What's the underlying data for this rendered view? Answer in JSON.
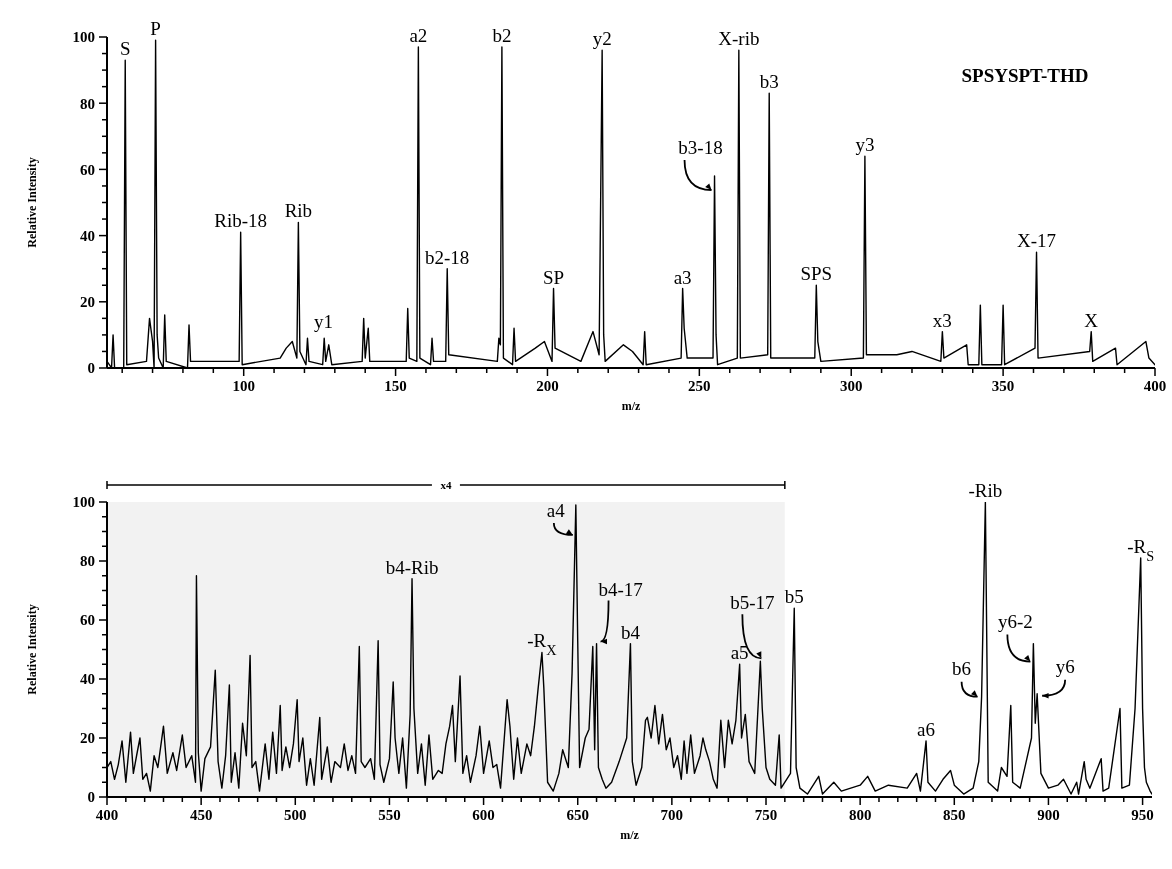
{
  "chart_data": [
    {
      "type": "line",
      "xlabel": "m/z",
      "ylabel": "Relative Intensity",
      "color": "#000000",
      "xlim": [
        55,
        400
      ],
      "ylim": [
        0,
        100
      ],
      "xticks": [
        {
          "value": 60,
          "label": null
        },
        {
          "value": 70,
          "label": null
        },
        {
          "value": 80,
          "label": null
        },
        {
          "value": 90,
          "label": null
        },
        100,
        {
          "value": 110,
          "label": null
        },
        {
          "value": 120,
          "label": null
        },
        {
          "value": 130,
          "label": null
        },
        {
          "value": 140,
          "label": null
        },
        150,
        {
          "value": 160,
          "label": null
        },
        {
          "value": 170,
          "label": null
        },
        {
          "value": 180,
          "label": null
        },
        {
          "value": 190,
          "label": null
        },
        200,
        {
          "value": 210,
          "label": null
        },
        {
          "value": 220,
          "label": null
        },
        {
          "value": 230,
          "label": null
        },
        {
          "value": 240,
          "label": null
        },
        250,
        {
          "value": 260,
          "label": null
        },
        {
          "value": 270,
          "label": null
        },
        {
          "value": 280,
          "label": null
        },
        {
          "value": 290,
          "label": null
        },
        300,
        {
          "value": 310,
          "label": null
        },
        {
          "value": 320,
          "label": null
        },
        {
          "value": 330,
          "label": null
        },
        {
          "value": 340,
          "label": null
        },
        350,
        {
          "value": 360,
          "label": null
        },
        {
          "value": 370,
          "label": null
        },
        {
          "value": 380,
          "label": null
        },
        {
          "value": 390,
          "label": null
        },
        400
      ],
      "yticks": [
        0,
        {
          "value": 5,
          "label": null
        },
        {
          "value": 10,
          "label": null
        },
        {
          "value": 15,
          "label": null
        },
        20,
        {
          "value": 25,
          "label": null
        },
        {
          "value": 30,
          "label": null
        },
        {
          "value": 35,
          "label": null
        },
        40,
        {
          "value": 45,
          "label": null
        },
        {
          "value": 50,
          "label": null
        },
        {
          "value": 55,
          "label": null
        },
        60,
        {
          "value": 65,
          "label": null
        },
        {
          "value": 70,
          "label": null
        },
        {
          "value": 75,
          "label": null
        },
        80,
        {
          "value": 85,
          "label": null
        },
        {
          "value": 90,
          "label": null
        },
        {
          "value": 95,
          "label": null
        },
        100
      ],
      "x": [
        55,
        56.5,
        57,
        57.5,
        60.5,
        61,
        61.5,
        68,
        69,
        70,
        70.5,
        71,
        71.5,
        72,
        73.5,
        74,
        74.5,
        81.5,
        82,
        82.5,
        98.5,
        99,
        99.5,
        112,
        114,
        116,
        117.5,
        118,
        118.5,
        120.5,
        121,
        121.5,
        126,
        126.5,
        127,
        128,
        129,
        139,
        139.5,
        140,
        141,
        141.5,
        153.5,
        154,
        154.5,
        157,
        157.5,
        158,
        161.5,
        162,
        162.5,
        166.5,
        167,
        167.5,
        183.5,
        184,
        184.5,
        185,
        185.5,
        188.5,
        189,
        189.5,
        196,
        199,
        201.5,
        202,
        202.5,
        211,
        215,
        217,
        218,
        218.5,
        219,
        225,
        228,
        231.5,
        232,
        232.5,
        244,
        244.5,
        245,
        246,
        254.5,
        255,
        255.5,
        256,
        262.5,
        263,
        263.5,
        272.5,
        273,
        273.5,
        288,
        288.5,
        289,
        290,
        304,
        304.5,
        305,
        315,
        320,
        329.5,
        330,
        330.5,
        338,
        338.5,
        342,
        342.5,
        343,
        349.5,
        350,
        350.5,
        360.5,
        361,
        361.5,
        378.5,
        379,
        379.5,
        387,
        387.5,
        397,
        398,
        400
      ],
      "values": [
        2,
        0,
        10,
        0,
        0,
        93,
        1,
        2,
        15,
        8,
        0,
        99,
        10,
        3,
        0,
        16,
        2,
        0,
        13,
        2,
        2,
        41,
        1,
        3,
        6,
        8,
        3,
        44,
        5,
        1,
        9,
        2,
        1,
        9,
        2,
        7,
        1,
        2,
        15,
        3,
        12,
        2,
        2,
        18,
        3,
        2,
        97,
        3,
        1,
        9,
        2,
        2,
        30,
        4,
        2,
        9,
        7,
        97,
        3,
        1,
        12,
        2,
        6,
        8,
        2,
        24,
        6,
        2,
        11,
        4,
        96,
        10,
        2,
        7,
        5,
        1,
        11,
        1,
        3,
        24,
        12,
        3,
        3,
        58,
        10,
        1,
        3,
        96,
        3,
        4,
        83,
        3,
        3,
        25,
        8,
        2,
        3,
        64,
        4,
        4,
        5,
        2,
        11,
        3,
        7,
        1,
        1,
        19,
        1,
        1,
        19,
        1,
        6,
        35,
        3,
        5,
        11,
        2,
        6,
        1,
        8,
        3,
        1
      ],
      "annotations": [
        {
          "text": "S",
          "x": 61,
          "y": 93
        },
        {
          "text": "P",
          "x": 71,
          "y": 99
        },
        {
          "text": "Rib-18",
          "x": 99,
          "y": 41
        },
        {
          "text": "Rib",
          "x": 118,
          "y": 44
        },
        {
          "text": "y1",
          "x": 121,
          "y": 9
        },
        {
          "text": "a2",
          "x": 157.5,
          "y": 97
        },
        {
          "text": "b2-18",
          "x": 167,
          "y": 30
        },
        {
          "text": "b2",
          "x": 185,
          "y": 97
        },
        {
          "text": "SP",
          "x": 202,
          "y": 24
        },
        {
          "text": "y2",
          "x": 218,
          "y": 96
        },
        {
          "text": "a3",
          "x": 244.5,
          "y": 24
        },
        {
          "text": "b3-18",
          "x": 255,
          "y": 58
        },
        {
          "text": "X-rib",
          "x": 263,
          "y": 96
        },
        {
          "text": "b3",
          "x": 273,
          "y": 83
        },
        {
          "text": "SPS",
          "x": 288.5,
          "y": 25
        },
        {
          "text": "y3",
          "x": 304.5,
          "y": 64
        },
        {
          "text": "x3",
          "x": 330,
          "y": 11
        },
        {
          "text": "X-17",
          "x": 361,
          "y": 35
        },
        {
          "text": "X",
          "x": 379,
          "y": 11
        },
        "SPSYSPT-THD"
      ]
    },
    {
      "type": "line",
      "xlabel": "m/z",
      "ylabel": "Relative Intensity",
      "color": "#000000",
      "xlim": [
        400,
        955
      ],
      "ylim": [
        0,
        100
      ],
      "xticks": [
        400,
        {
          "value": 410,
          "label": null
        },
        {
          "value": 420,
          "label": null
        },
        {
          "value": 430,
          "label": null
        },
        {
          "value": 440,
          "label": null
        },
        450,
        {
          "value": 460,
          "label": null
        },
        {
          "value": 470,
          "label": null
        },
        {
          "value": 480,
          "label": null
        },
        {
          "value": 490,
          "label": null
        },
        500,
        {
          "value": 510,
          "label": null
        },
        {
          "value": 520,
          "label": null
        },
        {
          "value": 530,
          "label": null
        },
        {
          "value": 540,
          "label": null
        },
        550,
        {
          "value": 560,
          "label": null
        },
        {
          "value": 570,
          "label": null
        },
        {
          "value": 580,
          "label": null
        },
        {
          "value": 590,
          "label": null
        },
        600,
        {
          "value": 610,
          "label": null
        },
        {
          "value": 620,
          "label": null
        },
        {
          "value": 630,
          "label": null
        },
        {
          "value": 640,
          "label": null
        },
        650,
        {
          "value": 660,
          "label": null
        },
        {
          "value": 670,
          "label": null
        },
        {
          "value": 680,
          "label": null
        },
        {
          "value": 690,
          "label": null
        },
        700,
        {
          "value": 710,
          "label": null
        },
        {
          "value": 720,
          "label": null
        },
        {
          "value": 730,
          "label": null
        },
        {
          "value": 740,
          "label": null
        },
        750,
        {
          "value": 760,
          "label": null
        },
        {
          "value": 770,
          "label": null
        },
        {
          "value": 780,
          "label": null
        },
        {
          "value": 790,
          "label": null
        },
        800,
        {
          "value": 810,
          "label": null
        },
        {
          "value": 820,
          "label": null
        },
        {
          "value": 830,
          "label": null
        },
        {
          "value": 840,
          "label": null
        },
        850,
        {
          "value": 860,
          "label": null
        },
        {
          "value": 870,
          "label": null
        },
        {
          "value": 880,
          "label": null
        },
        {
          "value": 890,
          "label": null
        },
        900,
        {
          "value": 910,
          "label": null
        },
        {
          "value": 920,
          "label": null
        },
        {
          "value": 930,
          "label": null
        },
        {
          "value": 940,
          "label": null
        },
        950
      ],
      "yticks": [
        0,
        {
          "value": 5,
          "label": null
        },
        {
          "value": 10,
          "label": null
        },
        {
          "value": 15,
          "label": null
        },
        20,
        {
          "value": 25,
          "label": null
        },
        {
          "value": 30,
          "label": null
        },
        {
          "value": 35,
          "label": null
        },
        40,
        {
          "value": 45,
          "label": null
        },
        {
          "value": 50,
          "label": null
        },
        {
          "value": 55,
          "label": null
        },
        60,
        {
          "value": 65,
          "label": null
        },
        {
          "value": 70,
          "label": null
        },
        {
          "value": 75,
          "label": null
        },
        80,
        {
          "value": 85,
          "label": null
        },
        {
          "value": 90,
          "label": null
        },
        {
          "value": 95,
          "label": null
        },
        100
      ],
      "x": [
        400,
        402,
        404,
        406,
        408,
        410,
        412.5,
        414,
        416,
        417.5,
        419,
        421,
        423,
        425,
        427,
        430,
        432,
        435,
        437,
        440,
        442,
        445,
        447,
        447.5,
        448.5,
        450,
        452,
        455,
        457.5,
        459,
        461,
        463,
        465,
        466,
        468,
        470,
        472,
        474,
        476,
        477,
        479,
        481,
        484,
        486,
        488,
        490,
        492,
        493,
        495,
        497,
        499,
        501,
        502,
        504,
        506,
        508,
        510,
        513,
        514,
        517,
        519,
        521,
        524,
        526,
        528,
        530,
        532,
        534,
        535,
        537,
        540,
        542,
        544,
        545,
        547,
        550,
        552,
        553,
        555,
        557,
        559,
        561,
        562,
        563,
        565,
        567,
        569,
        571,
        573,
        576,
        578,
        580,
        582,
        583.5,
        585,
        587.5,
        589,
        591,
        593,
        596,
        598,
        600,
        603,
        605,
        607,
        609,
        611,
        612.5,
        614,
        616,
        618,
        620,
        623,
        625,
        627,
        629,
        631,
        632,
        634,
        637,
        640,
        642,
        645,
        647,
        649,
        650,
        651,
        654,
        656,
        658,
        659,
        660,
        661,
        663,
        665,
        668,
        672,
        676,
        678,
        679,
        681,
        684,
        686,
        687,
        689,
        691,
        693,
        695,
        697,
        699,
        701,
        703,
        705,
        706.5,
        708,
        710,
        712,
        715,
        716.5,
        718,
        720,
        722,
        724,
        726,
        728,
        730,
        732,
        734,
        736,
        737,
        739,
        741,
        744,
        747,
        748,
        750,
        752,
        755,
        757,
        758,
        763,
        765,
        766,
        768,
        772,
        778,
        780,
        786,
        790,
        800,
        804,
        808,
        815,
        825,
        830,
        832,
        835,
        836,
        840,
        844,
        848,
        850,
        855,
        860,
        863,
        864.5,
        866.5,
        868,
        873,
        875,
        878,
        880,
        881,
        885,
        891,
        892,
        893,
        894,
        896,
        900,
        905,
        908,
        912,
        915,
        916,
        919,
        920,
        922,
        928,
        929,
        932,
        938,
        939,
        943,
        946,
        949,
        950,
        951,
        952,
        954,
        955
      ],
      "values": [
        10,
        12,
        6,
        11,
        19,
        5,
        22,
        8,
        15,
        20,
        6,
        8,
        2,
        14,
        10,
        24,
        8,
        15,
        9,
        21,
        10,
        14,
        5,
        75,
        15,
        2,
        13,
        17,
        43,
        12,
        3,
        14,
        38,
        5,
        15,
        3,
        25,
        14,
        48,
        10,
        12,
        2,
        18,
        6,
        22,
        8,
        31,
        9,
        17,
        10,
        18,
        33,
        12,
        20,
        4,
        13,
        4,
        27,
        6,
        17,
        5,
        12,
        10,
        18,
        9,
        14,
        8,
        51,
        12,
        10,
        13,
        6,
        53,
        11,
        5,
        13,
        39,
        20,
        8,
        20,
        3,
        28,
        74,
        30,
        8,
        18,
        4,
        21,
        6,
        9,
        8,
        18,
        24,
        31,
        12,
        41,
        8,
        14,
        5,
        14,
        24,
        8,
        19,
        10,
        11,
        3,
        20,
        33,
        24,
        6,
        20,
        8,
        18,
        14,
        24,
        37,
        49,
        37,
        5,
        2,
        8,
        16,
        10,
        42,
        99,
        53,
        10,
        20,
        23,
        51,
        16,
        52,
        10,
        6,
        3,
        5,
        12,
        20,
        52,
        12,
        4,
        10,
        26,
        27,
        20,
        31,
        18,
        28,
        16,
        20,
        10,
        14,
        6,
        19,
        8,
        21,
        8,
        14,
        20,
        16,
        12,
        6,
        3,
        26,
        10,
        26,
        18,
        26,
        45,
        20,
        28,
        12,
        8,
        46,
        30,
        10,
        6,
        4,
        21,
        3,
        8,
        64,
        10,
        3,
        1,
        7,
        1,
        5,
        2,
        4,
        7,
        2,
        4,
        3,
        8,
        2,
        19,
        5,
        2,
        6,
        9,
        4,
        1,
        3,
        12,
        34,
        100,
        5,
        2,
        10,
        7,
        31,
        5,
        3,
        20,
        52,
        25,
        35,
        8,
        3,
        4,
        6,
        1,
        5,
        1,
        12,
        6,
        3,
        13,
        2,
        3,
        30,
        3,
        4,
        30,
        81,
        30,
        10,
        5,
        2,
        1
      ],
      "bands": [
        {
          "axis": "x",
          "from": 400,
          "to": 760,
          "label": "x4"
        }
      ],
      "annotations": [
        {
          "text": "b4-Rib",
          "x": 562,
          "y": 74
        },
        {
          "text": "-R$_{X}$",
          "x": 631,
          "y": 49
        },
        {
          "text": "a4",
          "x": 649,
          "y": 99
        },
        {
          "text": "b4-17",
          "x": 660,
          "y": 52
        },
        {
          "text": "b4",
          "x": 678,
          "y": 52
        },
        {
          "text": "a5",
          "x": 736,
          "y": 45
        },
        {
          "text": "b5-17",
          "x": 747,
          "y": 46
        },
        {
          "text": "b5",
          "x": 765,
          "y": 64
        },
        {
          "text": "a6",
          "x": 835,
          "y": 19
        },
        {
          "text": "b6",
          "x": 864.5,
          "y": 34
        },
        {
          "text": "-Rib",
          "x": 866.5,
          "y": 100
        },
        {
          "text": "y6-2",
          "x": 892,
          "y": 52
        },
        {
          "text": "y6",
          "x": 894,
          "y": 35
        },
        {
          "text": "-R$_{S}$",
          "x": 949,
          "y": 81
        }
      ]
    }
  ]
}
